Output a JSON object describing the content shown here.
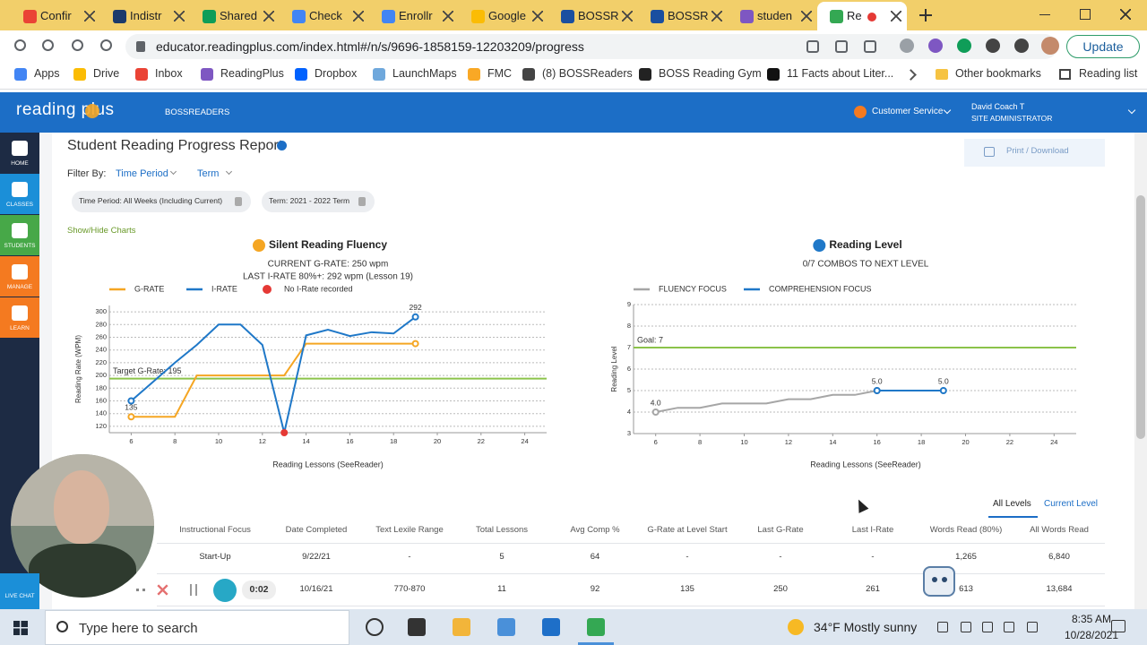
{
  "browser": {
    "tabs": [
      "Confir",
      "Indistr",
      "Shared",
      "Check",
      "Enrollr",
      "Google",
      "BOSSR",
      "BOSSR",
      "studen",
      "Re"
    ],
    "url": "educator.readingplus.com/index.html#/n/s/9696-1858159-12203209/progress",
    "update": "Update",
    "bookmarks": [
      "Apps",
      "Drive",
      "Inbox",
      "ReadingPlus",
      "Dropbox",
      "LaunchMaps",
      "FMC",
      "(8) BOSSReaders",
      "BOSS Reading Gym",
      "11 Facts about Liter..."
    ],
    "other_bookmarks": "Other bookmarks",
    "reading_list": "Reading list"
  },
  "app_header": {
    "logo": "reading plus",
    "org": "BOSSREADERS",
    "service": "Customer Service",
    "user": "David Coach T",
    "role": "SITE ADMINISTRATOR"
  },
  "sidebar": [
    "HOME",
    "CLASSES",
    "STUDENTS",
    "MANAGE",
    "LEARN"
  ],
  "live_chat": "LIVE CHAT",
  "report": {
    "title": "Student Reading Progress Report",
    "filter_label": "Filter By:",
    "filters": [
      "Time Period",
      "Term"
    ],
    "chips": [
      "Time Period: All Weeks (Including Current)",
      "Term: 2021 - 2022 Term"
    ],
    "toggle": "Show/Hide Charts",
    "print": "Print / Download"
  },
  "chart_data": [
    {
      "type": "line",
      "title": "Silent Reading Fluency",
      "subtitle": [
        "CURRENT G-RATE: 250 wpm",
        "LAST I-RATE 80%+: 292 wpm (Lesson 19)"
      ],
      "x_label": "Reading Lessons (SeeReader)",
      "y_label": "Reading Rate (WPM)",
      "x": [
        6,
        7,
        8,
        9,
        10,
        11,
        12,
        13,
        14,
        15,
        16,
        17,
        18,
        19
      ],
      "series": [
        {
          "name": "G-RATE",
          "color": "#f5a623",
          "values": [
            135,
            135,
            135,
            200,
            200,
            200,
            200,
            200,
            250,
            250,
            250,
            250,
            250,
            250
          ]
        },
        {
          "name": "I-RATE",
          "color": "#1f78c8",
          "values": [
            160,
            190,
            220,
            248,
            280,
            280,
            248,
            110,
            263,
            272,
            262,
            268,
            266,
            292
          ]
        },
        {
          "name": "No I-Rate recorded",
          "color": "#e53935",
          "x": [
            13
          ],
          "values": [
            110
          ]
        }
      ],
      "reference": {
        "label": "Target G-Rate: 195",
        "value": 195,
        "color": "#8bc34a"
      },
      "xlim": [
        5,
        25
      ],
      "xticks": [
        6,
        8,
        10,
        12,
        14,
        16,
        18,
        20,
        22,
        24
      ],
      "ylim": [
        110,
        310
      ],
      "yticks": [
        120,
        140,
        160,
        180,
        200,
        220,
        240,
        260,
        280,
        300
      ],
      "grid": true
    },
    {
      "type": "line",
      "title": "Reading Level",
      "subtitle": [
        "0/7 COMBOS TO NEXT LEVEL"
      ],
      "x_label": "Reading Lessons (SeeReader)",
      "y_label": "Reading Level",
      "series": [
        {
          "name": "FLUENCY FOCUS",
          "color": "#a6a6a6",
          "x": [
            6,
            7,
            8,
            9,
            10,
            11,
            12,
            13,
            14,
            15,
            16
          ],
          "values": [
            4,
            4.2,
            4.2,
            4.4,
            4.4,
            4.4,
            4.6,
            4.6,
            4.8,
            4.8,
            5
          ],
          "value_labels": [
            "4.0",
            null,
            null,
            null,
            null,
            null,
            null,
            null,
            null,
            null,
            "5.0"
          ]
        },
        {
          "name": "COMPREHENSION FOCUS",
          "color": "#1f78c8",
          "x": [
            16,
            17,
            18,
            19
          ],
          "values": [
            5,
            5,
            5,
            5
          ],
          "value_labels": [
            null,
            null,
            null,
            "5.0"
          ]
        }
      ],
      "reference": {
        "label": "Goal: 7",
        "value": 7,
        "color": "#8bc34a"
      },
      "xlim": [
        5,
        25
      ],
      "xticks": [
        6,
        8,
        10,
        12,
        14,
        16,
        18,
        20,
        22,
        24
      ],
      "ylim": [
        3,
        9
      ],
      "yticks": [
        3,
        4,
        5,
        6,
        7,
        8,
        9
      ],
      "grid": true
    }
  ],
  "table": {
    "tabs": [
      "All Levels",
      "Current Level"
    ],
    "headers": [
      "Instructional Focus",
      "Date Completed",
      "Text Lexile Range",
      "Total Lessons",
      "Avg Comp %",
      "G-Rate at Level Start",
      "Last G-Rate",
      "Last I-Rate",
      "Words Read (80%)",
      "All Words Read"
    ],
    "rows": [
      [
        "Start-Up",
        "9/22/21",
        "-",
        "5",
        "64",
        "-",
        "-",
        "-",
        "1,265",
        "6,840"
      ],
      [
        null,
        "10/16/21",
        "770-870",
        "11",
        "92",
        "135",
        "250",
        "261",
        "613",
        "13,684"
      ]
    ]
  },
  "video": {
    "time": "0:02"
  },
  "taskbar": {
    "search": "Type here to search",
    "weather": "34°F Mostly sunny",
    "time": "8:35 AM",
    "date": "10/28/2021"
  }
}
